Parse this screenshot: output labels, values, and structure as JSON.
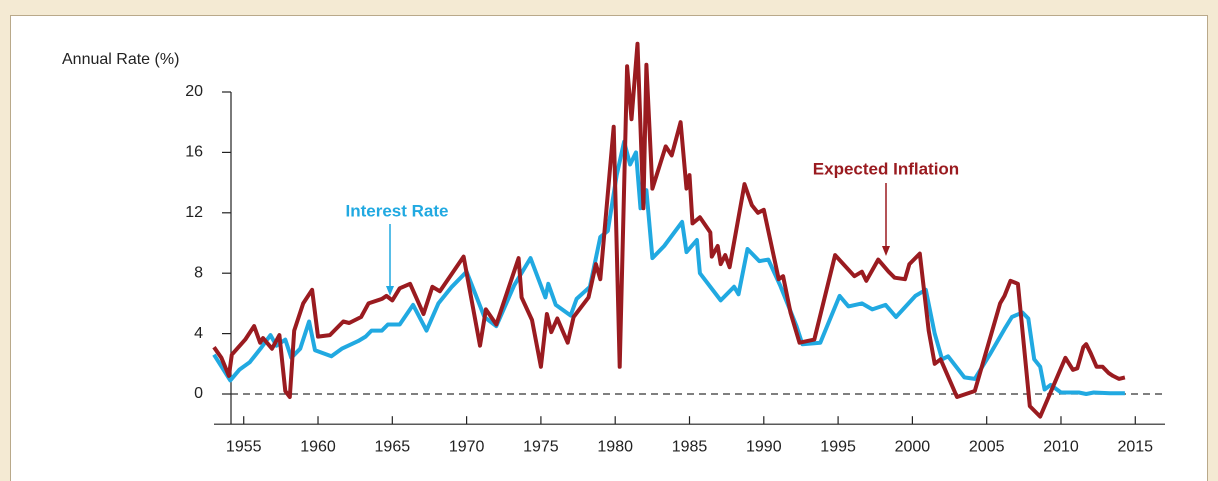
{
  "chart_data": {
    "type": "line",
    "ylabel": "Annual Rate (%)",
    "xlim": [
      1953.0,
      2017.0
    ],
    "ylim": [
      -2,
      24
    ],
    "xticks": [
      1955,
      1960,
      1965,
      1970,
      1975,
      1980,
      1985,
      1990,
      1995,
      2000,
      2005,
      2010,
      2015
    ],
    "yticks": [
      0,
      4,
      8,
      12,
      16,
      20
    ],
    "grid": false,
    "series": [
      {
        "name": "Interest Rate",
        "color": "#21a9e1",
        "x": [
          1953.0,
          1954.1,
          1954.7,
          1955.4,
          1956.2,
          1956.8,
          1957.2,
          1957.8,
          1958.2,
          1958.8,
          1959.4,
          1959.8,
          1960.9,
          1961.6,
          1962.7,
          1963.2,
          1963.6,
          1964.3,
          1964.7,
          1965.5,
          1966.4,
          1967.3,
          1968.1,
          1969.0,
          1970.0,
          1971.2,
          1972.0,
          1973.2,
          1974.3,
          1975.3,
          1975.5,
          1976.0,
          1977.0,
          1977.4,
          1978.3,
          1979.0,
          1979.5,
          1980.1,
          1980.6,
          1981.0,
          1981.4,
          1981.7,
          1982.1,
          1982.5,
          1983.3,
          1984.5,
          1984.8,
          1985.5,
          1985.7,
          1987.1,
          1988.0,
          1988.3,
          1988.9,
          1989.7,
          1990.3,
          1991.1,
          1992.2,
          1992.6,
          1993.8,
          1995.1,
          1995.7,
          1996.6,
          1997.3,
          1998.2,
          1998.9,
          2000.2,
          2000.9,
          2001.5,
          2002.0,
          2002.4,
          2003.5,
          2004.2,
          2005.2,
          2006.2,
          2006.7,
          2007.4,
          2007.8,
          2008.2,
          2008.6,
          2008.9,
          2009.3,
          2010.0,
          2011.2,
          2011.7,
          2012.2,
          2013.3,
          2014.3
        ],
        "values": [
          2.6,
          0.9,
          1.6,
          2.1,
          3.1,
          3.9,
          3.2,
          3.6,
          2.4,
          3.0,
          4.8,
          2.9,
          2.5,
          3.0,
          3.5,
          3.8,
          4.2,
          4.2,
          4.6,
          4.6,
          5.9,
          4.2,
          6.0,
          7.1,
          8.1,
          5.1,
          4.5,
          7.2,
          9.0,
          6.4,
          7.3,
          5.9,
          5.2,
          6.3,
          7.1,
          10.4,
          10.8,
          14.5,
          16.7,
          15.2,
          16.0,
          12.3,
          13.5,
          9.0,
          9.8,
          11.4,
          9.4,
          10.2,
          8.0,
          6.2,
          7.1,
          6.6,
          9.6,
          8.8,
          8.9,
          7.2,
          4.5,
          3.3,
          3.4,
          6.5,
          5.8,
          6.0,
          5.6,
          5.9,
          5.1,
          6.5,
          6.9,
          4.0,
          2.3,
          2.5,
          1.1,
          1.0,
          2.6,
          4.3,
          5.1,
          5.4,
          5.0,
          2.3,
          1.8,
          0.3,
          0.6,
          0.1,
          0.1,
          0.0,
          0.1,
          0.05,
          0.05
        ]
      },
      {
        "name": "Expected Inflation",
        "color": "#9a1b20",
        "x": [
          1953.0,
          1953.5,
          1954.0,
          1954.2,
          1955.1,
          1955.7,
          1956.1,
          1956.3,
          1956.9,
          1957.4,
          1957.8,
          1958.1,
          1958.4,
          1959.0,
          1959.6,
          1960.0,
          1960.8,
          1961.7,
          1962.1,
          1962.9,
          1963.4,
          1964.3,
          1964.6,
          1965.0,
          1965.5,
          1966.2,
          1967.1,
          1967.7,
          1968.2,
          1969.8,
          1970.9,
          1971.3,
          1972.0,
          1973.5,
          1973.7,
          1974.4,
          1975.0,
          1975.4,
          1975.7,
          1976.1,
          1976.8,
          1977.2,
          1978.2,
          1978.7,
          1979.0,
          1979.9,
          1980.3,
          1980.8,
          1981.1,
          1981.5,
          1981.9,
          1982.1,
          1982.5,
          1983.4,
          1983.8,
          1984.4,
          1984.8,
          1985.0,
          1985.2,
          1985.7,
          1986.4,
          1986.5,
          1986.9,
          1987.1,
          1987.4,
          1987.7,
          1988.7,
          1989.2,
          1989.6,
          1990.0,
          1991.0,
          1991.3,
          1991.8,
          1992.4,
          1993.4,
          1994.8,
          1996.1,
          1996.6,
          1996.9,
          1997.7,
          1998.4,
          1998.8,
          1999.5,
          1999.8,
          2000.5,
          2001.1,
          2001.5,
          2001.9,
          2003.0,
          2004.2,
          2005.9,
          2006.2,
          2006.6,
          2007.1,
          2007.9,
          2008.6,
          2010.3,
          2010.8,
          2011.1,
          2011.5,
          2011.7,
          2012.0,
          2012.4,
          2012.8,
          2013.2,
          2013.5,
          2013.9,
          2014.3
        ],
        "values": [
          3.1,
          2.4,
          1.2,
          2.6,
          3.6,
          4.5,
          3.4,
          3.7,
          3.0,
          3.9,
          0.2,
          -0.2,
          4.2,
          6.0,
          6.9,
          3.8,
          3.9,
          4.8,
          4.7,
          5.1,
          6.0,
          6.3,
          6.5,
          6.2,
          7.0,
          7.3,
          5.3,
          7.1,
          6.8,
          9.1,
          3.2,
          5.6,
          4.6,
          9.0,
          6.4,
          4.9,
          1.8,
          5.3,
          4.1,
          5.0,
          3.4,
          5.1,
          6.4,
          8.6,
          7.6,
          17.7,
          1.8,
          21.7,
          18.2,
          23.2,
          12.3,
          21.8,
          13.6,
          16.4,
          15.8,
          18.0,
          13.6,
          14.5,
          11.3,
          11.7,
          10.7,
          9.1,
          9.8,
          8.6,
          9.2,
          8.4,
          13.9,
          12.5,
          12.0,
          12.2,
          7.6,
          7.8,
          5.4,
          3.4,
          3.6,
          9.2,
          7.8,
          8.1,
          7.5,
          8.9,
          8.1,
          7.7,
          7.6,
          8.6,
          9.3,
          4.2,
          2.0,
          2.3,
          -0.2,
          0.2,
          6.0,
          6.5,
          7.5,
          7.3,
          -0.8,
          -1.5,
          2.4,
          1.6,
          1.7,
          3.1,
          3.3,
          2.7,
          1.8,
          1.8,
          1.4,
          1.2,
          1.0,
          1.1
        ]
      }
    ]
  }
}
